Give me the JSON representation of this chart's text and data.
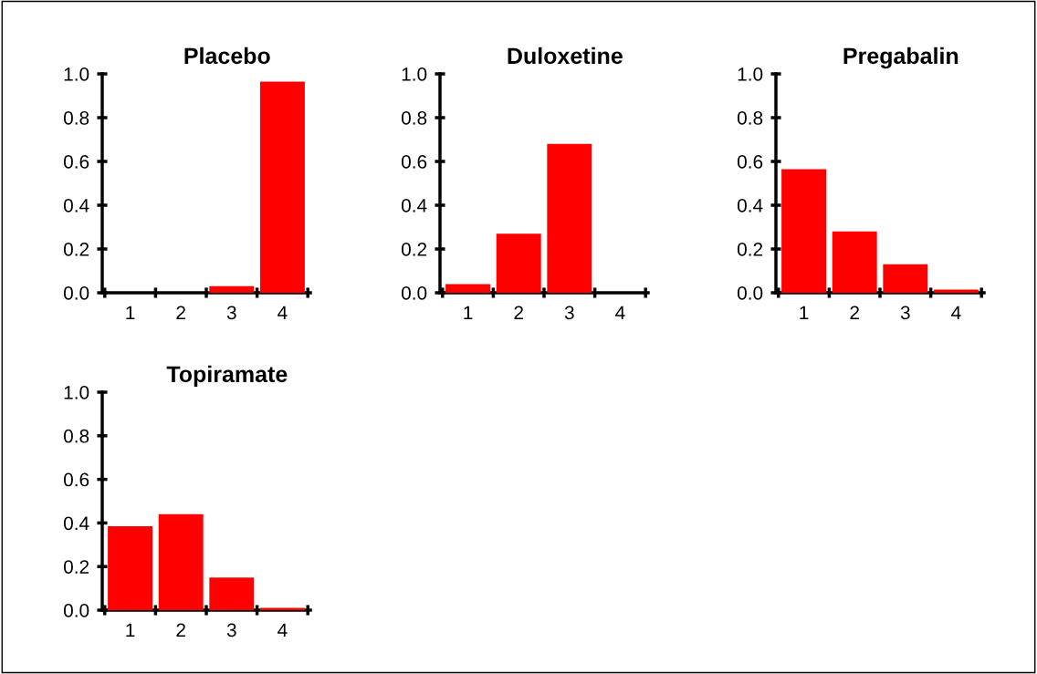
{
  "chart_data": [
    {
      "type": "bar",
      "title": "Placebo",
      "categories": [
        "1",
        "2",
        "3",
        "4"
      ],
      "values": [
        0,
        0,
        0.03,
        0.965
      ],
      "color": "#ff0000",
      "ylim": [
        0,
        1.0
      ],
      "yticks": [
        {
          "value": 0,
          "label": "0.0"
        },
        {
          "value": 0.2,
          "label": "0.2"
        },
        {
          "value": 0.4,
          "label": "0.4"
        },
        {
          "value": 0.6,
          "label": "0.6"
        },
        {
          "value": 0.8,
          "label": "0.8"
        },
        {
          "value": 1.0,
          "label": "1.0"
        }
      ],
      "grid": false,
      "legend": false
    },
    {
      "type": "bar",
      "title": "Duloxetine",
      "categories": [
        "1",
        "2",
        "3",
        "4"
      ],
      "values": [
        0.04,
        0.27,
        0.68,
        0
      ],
      "color": "#ff0000",
      "ylim": [
        0,
        1.0
      ],
      "yticks": [
        {
          "value": 0,
          "label": "0.0"
        },
        {
          "value": 0.2,
          "label": "0.2"
        },
        {
          "value": 0.4,
          "label": "0.4"
        },
        {
          "value": 0.6,
          "label": "0.6"
        },
        {
          "value": 0.8,
          "label": "0.8"
        },
        {
          "value": 1.0,
          "label": "1.0"
        }
      ],
      "grid": false,
      "legend": false
    },
    {
      "type": "bar",
      "title": "Pregabalin",
      "categories": [
        "1",
        "2",
        "3",
        "4"
      ],
      "values": [
        0.565,
        0.28,
        0.13,
        0.015
      ],
      "color": "#ff0000",
      "ylim": [
        0,
        1.0
      ],
      "yticks": [
        {
          "value": 0,
          "label": "0.0"
        },
        {
          "value": 0.2,
          "label": "0.2"
        },
        {
          "value": 0.4,
          "label": "0.4"
        },
        {
          "value": 0.6,
          "label": "0.6"
        },
        {
          "value": 0.8,
          "label": "0.8"
        },
        {
          "value": 1.0,
          "label": "1.0"
        }
      ],
      "grid": false,
      "legend": false
    },
    {
      "type": "bar",
      "title": "Topiramate",
      "categories": [
        "1",
        "2",
        "3",
        "4"
      ],
      "values": [
        0.385,
        0.44,
        0.15,
        0.01
      ],
      "color": "#ff0000",
      "ylim": [
        0,
        1.0
      ],
      "yticks": [
        {
          "value": 0,
          "label": "0.0"
        },
        {
          "value": 0.2,
          "label": "0.2"
        },
        {
          "value": 0.4,
          "label": "0.4"
        },
        {
          "value": 0.6,
          "label": "0.6"
        },
        {
          "value": 0.8,
          "label": "0.8"
        },
        {
          "value": 1.0,
          "label": "1.0"
        }
      ],
      "grid": false,
      "legend": false
    }
  ]
}
